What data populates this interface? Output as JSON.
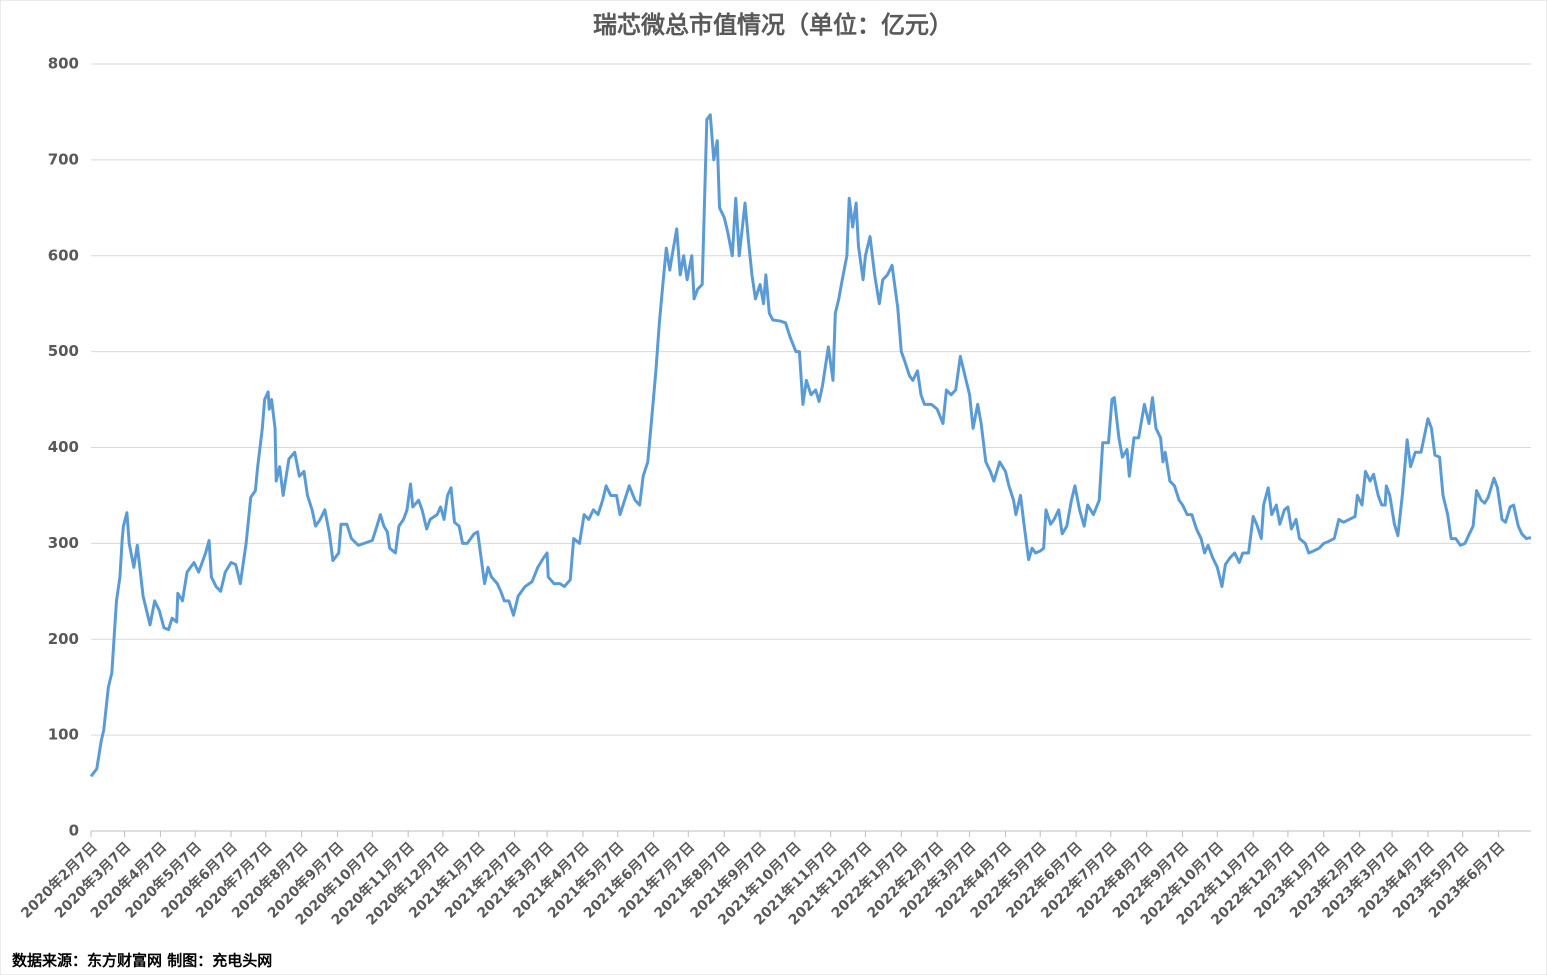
{
  "chart_data": {
    "type": "line",
    "title": "瑞芯微总市值情况（单位：亿元）",
    "source": "数据来源：东方财富网 制图：充电头网",
    "color": "#5b9bd5",
    "grid": true,
    "ylim": [
      0,
      800
    ],
    "yticks": [
      0,
      100,
      200,
      300,
      400,
      500,
      600,
      700,
      800
    ],
    "xlim": [
      "2020-02-07",
      "2023-07-05"
    ],
    "xticks": [
      {
        "value": "2020-02-07",
        "label": "2020年2月7日"
      },
      {
        "value": "2020-03-07",
        "label": "2020年3月7日"
      },
      {
        "value": "2020-04-07",
        "label": "2020年4月7日"
      },
      {
        "value": "2020-05-07",
        "label": "2020年5月7日"
      },
      {
        "value": "2020-06-07",
        "label": "2020年6月7日"
      },
      {
        "value": "2020-07-07",
        "label": "2020年7月7日"
      },
      {
        "value": "2020-08-07",
        "label": "2020年8月7日"
      },
      {
        "value": "2020-09-07",
        "label": "2020年9月7日"
      },
      {
        "value": "2020-10-07",
        "label": "2020年10月7日"
      },
      {
        "value": "2020-11-07",
        "label": "2020年11月7日"
      },
      {
        "value": "2020-12-07",
        "label": "2020年12月7日"
      },
      {
        "value": "2021-01-07",
        "label": "2021年1月7日"
      },
      {
        "value": "2021-02-07",
        "label": "2021年2月7日"
      },
      {
        "value": "2021-03-07",
        "label": "2021年3月7日"
      },
      {
        "value": "2021-04-07",
        "label": "2021年4月7日"
      },
      {
        "value": "2021-05-07",
        "label": "2021年5月7日"
      },
      {
        "value": "2021-06-07",
        "label": "2021年6月7日"
      },
      {
        "value": "2021-07-07",
        "label": "2021年7月7日"
      },
      {
        "value": "2021-08-07",
        "label": "2021年8月7日"
      },
      {
        "value": "2021-09-07",
        "label": "2021年9月7日"
      },
      {
        "value": "2021-10-07",
        "label": "2021年10月7日"
      },
      {
        "value": "2021-11-07",
        "label": "2021年11月7日"
      },
      {
        "value": "2021-12-07",
        "label": "2021年12月7日"
      },
      {
        "value": "2022-01-07",
        "label": "2022年1月7日"
      },
      {
        "value": "2022-02-07",
        "label": "2022年2月7日"
      },
      {
        "value": "2022-03-07",
        "label": "2022年3月7日"
      },
      {
        "value": "2022-04-07",
        "label": "2022年4月7日"
      },
      {
        "value": "2022-05-07",
        "label": "2022年5月7日"
      },
      {
        "value": "2022-06-07",
        "label": "2022年6月7日"
      },
      {
        "value": "2022-07-07",
        "label": "2022年7月7日"
      },
      {
        "value": "2022-08-07",
        "label": "2022年8月7日"
      },
      {
        "value": "2022-09-07",
        "label": "2022年9月7日"
      },
      {
        "value": "2022-10-07",
        "label": "2022年10月7日"
      },
      {
        "value": "2022-11-07",
        "label": "2022年11月7日"
      },
      {
        "value": "2022-12-07",
        "label": "2022年12月7日"
      },
      {
        "value": "2023-01-07",
        "label": "2023年1月7日"
      },
      {
        "value": "2023-02-07",
        "label": "2023年2月7日"
      },
      {
        "value": "2023-03-07",
        "label": "2023年3月7日"
      },
      {
        "value": "2023-04-07",
        "label": "2023年4月7日"
      },
      {
        "value": "2023-05-07",
        "label": "2023年5月7日"
      },
      {
        "value": "2023-06-07",
        "label": "2023年6月7日"
      }
    ],
    "x": [
      "2020-02-07",
      "2020-02-12",
      "2020-02-16",
      "2020-02-18",
      "2020-02-22",
      "2020-02-25",
      "2020-02-29",
      "2020-03-03",
      "2020-03-05",
      "2020-03-06",
      "2020-03-09",
      "2020-03-11",
      "2020-03-15",
      "2020-03-18",
      "2020-03-23",
      "2020-03-29",
      "2020-04-02",
      "2020-04-06",
      "2020-04-10",
      "2020-04-14",
      "2020-04-17",
      "2020-04-21",
      "2020-04-22",
      "2020-04-26",
      "2020-04-30",
      "2020-05-06",
      "2020-05-10",
      "2020-05-16",
      "2020-05-19",
      "2020-05-21",
      "2020-05-25",
      "2020-05-29",
      "2020-06-02",
      "2020-06-07",
      "2020-06-11",
      "2020-06-15",
      "2020-06-20",
      "2020-06-24",
      "2020-06-28",
      "2020-06-30",
      "2020-07-04",
      "2020-07-06",
      "2020-07-09",
      "2020-07-10",
      "2020-07-12",
      "2020-07-15",
      "2020-07-16",
      "2020-07-19",
      "2020-07-22",
      "2020-07-27",
      "2020-08-01",
      "2020-08-05",
      "2020-08-09",
      "2020-08-12",
      "2020-08-16",
      "2020-08-19",
      "2020-08-23",
      "2020-08-27",
      "2020-08-31",
      "2020-09-03",
      "2020-09-08",
      "2020-09-10",
      "2020-09-15",
      "2020-09-19",
      "2020-09-25",
      "2020-10-07",
      "2020-10-11",
      "2020-10-14",
      "2020-10-17",
      "2020-10-20",
      "2020-10-22",
      "2020-10-27",
      "2020-10-30",
      "2020-11-03",
      "2020-11-06",
      "2020-11-09",
      "2020-11-11",
      "2020-11-16",
      "2020-11-19",
      "2020-11-23",
      "2020-11-26",
      "2020-12-02",
      "2020-12-05",
      "2020-12-08",
      "2020-12-11",
      "2020-12-14",
      "2020-12-17",
      "2020-12-21",
      "2020-12-24",
      "2020-12-28",
      "2021-01-03",
      "2021-01-06",
      "2021-01-09",
      "2021-01-12",
      "2021-01-15",
      "2021-01-18",
      "2021-01-23",
      "2021-01-26",
      "2021-01-29",
      "2021-02-02",
      "2021-02-06",
      "2021-02-10",
      "2021-02-16",
      "2021-02-22",
      "2021-02-27",
      "2021-03-04",
      "2021-03-07",
      "2021-03-08",
      "2021-03-13",
      "2021-03-18",
      "2021-03-22",
      "2021-03-27",
      "2021-03-30",
      "2021-04-04",
      "2021-04-08",
      "2021-04-12",
      "2021-04-16",
      "2021-04-20",
      "2021-04-24",
      "2021-04-27",
      "2021-05-01",
      "2021-05-06",
      "2021-05-09",
      "2021-05-13",
      "2021-05-17",
      "2021-05-22",
      "2021-05-26",
      "2021-05-29",
      "2021-06-02",
      "2021-06-05",
      "2021-06-09",
      "2021-06-12",
      "2021-06-15",
      "2021-06-18",
      "2021-06-21",
      "2021-06-23",
      "2021-06-27",
      "2021-06-30",
      "2021-07-03",
      "2021-07-06",
      "2021-07-10",
      "2021-07-12",
      "2021-07-15",
      "2021-07-19",
      "2021-07-23",
      "2021-07-26",
      "2021-07-29",
      "2021-08-01",
      "2021-08-03",
      "2021-08-07",
      "2021-08-10",
      "2021-08-14",
      "2021-08-17",
      "2021-08-20",
      "2021-08-25",
      "2021-08-28",
      "2021-08-31",
      "2021-09-03",
      "2021-09-07",
      "2021-09-10",
      "2021-09-12",
      "2021-09-15",
      "2021-09-18",
      "2021-09-24",
      "2021-09-29",
      "2021-10-03",
      "2021-10-08",
      "2021-10-11",
      "2021-10-14",
      "2021-10-17",
      "2021-10-21",
      "2021-10-25",
      "2021-10-28",
      "2021-10-31",
      "2021-11-05",
      "2021-11-09",
      "2021-11-11",
      "2021-11-14",
      "2021-11-17",
      "2021-11-21",
      "2021-11-23",
      "2021-11-26",
      "2021-11-29",
      "2021-12-01",
      "2021-12-05",
      "2021-12-07",
      "2021-12-11",
      "2021-12-15",
      "2021-12-19",
      "2021-12-22",
      "2021-12-26",
      "2021-12-30",
      "2022-01-04",
      "2022-01-07",
      "2022-01-10",
      "2022-01-14",
      "2022-01-17",
      "2022-01-21",
      "2022-01-24",
      "2022-01-27",
      "2022-02-02",
      "2022-02-07",
      "2022-02-12",
      "2022-02-15",
      "2022-02-19",
      "2022-02-23",
      "2022-02-27",
      "2022-03-01",
      "2022-03-04",
      "2022-03-07",
      "2022-03-10",
      "2022-03-14",
      "2022-03-17",
      "2022-03-21",
      "2022-03-25",
      "2022-03-28",
      "2022-04-02",
      "2022-04-07",
      "2022-04-10",
      "2022-04-14",
      "2022-04-16",
      "2022-04-20",
      "2022-04-23",
      "2022-04-27",
      "2022-04-30",
      "2022-05-03",
      "2022-05-07",
      "2022-05-10",
      "2022-05-12",
      "2022-05-16",
      "2022-05-19",
      "2022-05-23",
      "2022-05-26",
      "2022-05-30",
      "2022-06-03",
      "2022-06-06",
      "2022-06-10",
      "2022-06-14",
      "2022-06-17",
      "2022-06-22",
      "2022-06-27",
      "2022-06-30",
      "2022-07-05",
      "2022-07-08",
      "2022-07-10",
      "2022-07-14",
      "2022-07-17",
      "2022-07-21",
      "2022-07-23",
      "2022-07-27",
      "2022-07-31",
      "2022-08-05",
      "2022-08-09",
      "2022-08-12",
      "2022-08-15",
      "2022-08-19",
      "2022-08-21",
      "2022-08-23",
      "2022-08-27",
      "2022-08-31",
      "2022-09-04",
      "2022-09-07",
      "2022-09-11",
      "2022-09-15",
      "2022-09-19",
      "2022-09-23",
      "2022-09-26",
      "2022-09-29",
      "2022-10-03",
      "2022-10-07",
      "2022-10-11",
      "2022-10-14",
      "2022-10-18",
      "2022-10-22",
      "2022-10-26",
      "2022-10-29",
      "2022-11-03",
      "2022-11-07",
      "2022-11-10",
      "2022-11-14",
      "2022-11-16",
      "2022-11-20",
      "2022-11-23",
      "2022-11-27",
      "2022-11-30",
      "2022-12-04",
      "2022-12-07",
      "2022-12-10",
      "2022-12-14",
      "2022-12-17",
      "2022-12-22",
      "2022-12-25",
      "2022-12-29",
      "2023-01-03",
      "2023-01-07",
      "2023-01-11",
      "2023-01-16",
      "2023-01-20",
      "2023-01-24",
      "2023-01-29",
      "2023-02-03",
      "2023-02-05",
      "2023-02-09",
      "2023-02-12",
      "2023-02-16",
      "2023-02-19",
      "2023-02-23",
      "2023-02-26",
      "2023-03-01",
      "2023-03-02",
      "2023-03-05",
      "2023-03-09",
      "2023-03-12",
      "2023-03-16",
      "2023-03-20",
      "2023-03-23",
      "2023-03-27",
      "2023-04-01",
      "2023-04-07",
      "2023-04-10",
      "2023-04-13",
      "2023-04-17",
      "2023-04-20",
      "2023-04-24",
      "2023-04-27",
      "2023-05-01",
      "2023-05-05",
      "2023-05-09",
      "2023-05-12",
      "2023-05-16",
      "2023-05-19",
      "2023-05-23",
      "2023-05-26",
      "2023-05-29",
      "2023-06-03",
      "2023-06-06",
      "2023-06-10",
      "2023-06-13",
      "2023-06-17",
      "2023-06-20",
      "2023-06-24",
      "2023-06-27",
      "2023-07-01",
      "2023-07-05"
    ],
    "values": [
      57,
      65,
      95,
      105,
      150,
      165,
      240,
      265,
      305,
      318,
      332,
      300,
      275,
      298,
      245,
      215,
      240,
      230,
      212,
      210,
      222,
      218,
      248,
      240,
      270,
      280,
      270,
      290,
      303,
      265,
      255,
      250,
      270,
      280,
      278,
      258,
      300,
      348,
      355,
      380,
      420,
      450,
      458,
      440,
      450,
      420,
      365,
      380,
      350,
      388,
      395,
      370,
      375,
      350,
      335,
      318,
      325,
      335,
      310,
      282,
      290,
      320,
      320,
      305,
      298,
      303,
      318,
      330,
      318,
      312,
      295,
      290,
      318,
      325,
      335,
      362,
      338,
      345,
      335,
      315,
      325,
      330,
      338,
      325,
      350,
      358,
      322,
      318,
      300,
      300,
      310,
      312,
      285,
      258,
      275,
      265,
      258,
      250,
      240,
      240,
      225,
      245,
      255,
      260,
      275,
      285,
      290,
      265,
      258,
      258,
      255,
      262,
      305,
      300,
      330,
      325,
      335,
      330,
      345,
      360,
      350,
      350,
      330,
      345,
      360,
      345,
      340,
      370,
      385,
      425,
      480,
      530,
      570,
      608,
      585,
      600,
      628,
      580,
      600,
      575,
      600,
      555,
      565,
      570,
      742,
      747,
      700,
      720,
      650,
      640,
      625,
      600,
      660,
      600,
      655,
      615,
      580,
      555,
      570,
      550,
      580,
      540,
      533,
      532,
      530,
      515,
      500,
      500,
      445,
      470,
      455,
      460,
      448,
      465,
      505,
      470,
      540,
      555,
      575,
      600,
      660,
      630,
      655,
      610,
      575,
      600,
      620,
      580,
      550,
      575,
      580,
      590,
      545,
      500,
      490,
      475,
      470,
      480,
      455,
      445,
      445,
      440,
      425,
      460,
      455,
      460,
      495,
      485,
      470,
      455,
      420,
      445,
      425,
      385,
      375,
      365,
      385,
      375,
      360,
      345,
      330,
      350,
      320,
      283,
      295,
      290,
      292,
      295,
      335,
      320,
      325,
      335,
      310,
      318,
      345,
      360,
      335,
      318,
      340,
      330,
      345,
      405,
      405,
      450,
      452,
      410,
      390,
      398,
      370,
      410,
      410,
      445,
      425,
      452,
      420,
      410,
      385,
      395,
      365,
      360,
      345,
      340,
      330,
      330,
      315,
      305,
      290,
      298,
      285,
      275,
      255,
      278,
      285,
      290,
      280,
      290,
      290,
      328,
      320,
      305,
      340,
      358,
      330,
      340,
      320,
      335,
      338,
      315,
      325,
      305,
      300,
      290,
      292,
      295,
      300,
      302,
      305,
      325,
      322,
      325,
      328,
      350,
      340,
      375,
      365,
      372,
      350,
      340,
      340,
      360,
      350,
      320,
      308,
      352,
      408,
      380,
      395,
      395,
      430,
      420,
      392,
      390,
      350,
      330,
      305,
      305,
      298,
      300,
      308,
      318,
      355,
      345,
      342,
      348,
      368,
      358,
      325,
      322,
      338,
      340,
      318,
      310,
      305,
      306
    ]
  }
}
